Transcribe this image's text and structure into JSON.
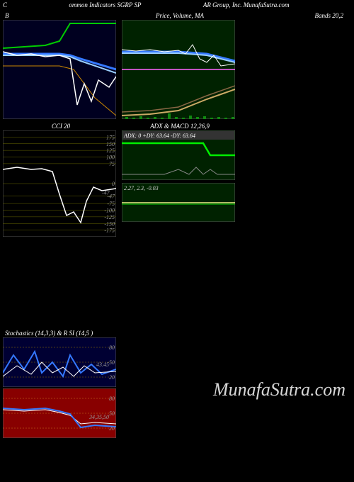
{
  "header": {
    "left": "C",
    "mid1": "ommon Indicators SGRP SP",
    "mid2": "AR Group, Inc. MunafaSutra.com"
  },
  "watermark": "MunafaSutra.com",
  "panels": {
    "b": {
      "title": "B",
      "right_title": "Bands 20,2",
      "w": 160,
      "h": 140,
      "bg": "#000020",
      "lines": [
        {
          "color": "#00cc00",
          "width": 2,
          "pts": [
            [
              0,
              40
            ],
            [
              30,
              38
            ],
            [
              60,
              36
            ],
            [
              80,
              30
            ],
            [
              95,
              5
            ],
            [
              160,
              5
            ]
          ]
        },
        {
          "color": "#3478ff",
          "width": 3,
          "pts": [
            [
              0,
              48
            ],
            [
              40,
              48
            ],
            [
              80,
              48
            ],
            [
              95,
              50
            ],
            [
              110,
              55
            ],
            [
              160,
              70
            ]
          ]
        },
        {
          "color": "#9acfff",
          "width": 2,
          "pts": [
            [
              0,
              50
            ],
            [
              40,
              50
            ],
            [
              80,
              50
            ],
            [
              95,
              52
            ],
            [
              110,
              58
            ],
            [
              160,
              75
            ]
          ]
        },
        {
          "color": "#cc8800",
          "width": 1,
          "pts": [
            [
              0,
              65
            ],
            [
              40,
              65
            ],
            [
              80,
              65
            ],
            [
              100,
              70
            ],
            [
              130,
              110
            ],
            [
              160,
              135
            ]
          ]
        },
        {
          "color": "#ffffff",
          "width": 1.5,
          "pts": [
            [
              0,
              45
            ],
            [
              20,
              50
            ],
            [
              40,
              48
            ],
            [
              60,
              52
            ],
            [
              80,
              50
            ],
            [
              95,
              55
            ],
            [
              105,
              120
            ],
            [
              115,
              90
            ],
            [
              125,
              115
            ],
            [
              135,
              85
            ],
            [
              150,
              95
            ],
            [
              160,
              80
            ]
          ]
        }
      ]
    },
    "price": {
      "title": "Price,  Volume,  MA",
      "w": 160,
      "h": 140,
      "bg": "#002200",
      "lines": [
        {
          "color": "#3478ff",
          "width": 3,
          "pts": [
            [
              0,
              45
            ],
            [
              40,
              45
            ],
            [
              80,
              45
            ],
            [
              120,
              48
            ],
            [
              160,
              58
            ]
          ]
        },
        {
          "color": "#9acfff",
          "width": 2,
          "pts": [
            [
              0,
              47
            ],
            [
              40,
              47
            ],
            [
              80,
              47
            ],
            [
              120,
              50
            ],
            [
              160,
              60
            ]
          ]
        },
        {
          "color": "#ff66ff",
          "width": 1.5,
          "pts": [
            [
              0,
              70
            ],
            [
              160,
              70
            ]
          ]
        },
        {
          "color": "#ffffff",
          "width": 1,
          "pts": [
            [
              0,
              42
            ],
            [
              20,
              44
            ],
            [
              40,
              42
            ],
            [
              60,
              45
            ],
            [
              80,
              43
            ],
            [
              90,
              48
            ],
            [
              100,
              35
            ],
            [
              110,
              55
            ],
            [
              120,
              60
            ],
            [
              130,
              50
            ],
            [
              140,
              65
            ],
            [
              160,
              62
            ]
          ]
        },
        {
          "color": "#ccaa66",
          "width": 2,
          "pts": [
            [
              0,
              135
            ],
            [
              40,
              133
            ],
            [
              80,
              128
            ],
            [
              100,
              120
            ],
            [
              120,
              112
            ],
            [
              140,
              105
            ],
            [
              160,
              98
            ]
          ]
        },
        {
          "color": "#886644",
          "width": 1.5,
          "pts": [
            [
              0,
              130
            ],
            [
              40,
              128
            ],
            [
              80,
              123
            ],
            [
              100,
              115
            ],
            [
              120,
              107
            ],
            [
              140,
              100
            ],
            [
              160,
              93
            ]
          ]
        }
      ],
      "volume_bars": [
        [
          5,
          3
        ],
        [
          15,
          2
        ],
        [
          25,
          4
        ],
        [
          35,
          2
        ],
        [
          45,
          3
        ],
        [
          55,
          2
        ],
        [
          65,
          8
        ],
        [
          75,
          3
        ],
        [
          85,
          2
        ],
        [
          95,
          5
        ],
        [
          105,
          3
        ],
        [
          115,
          4
        ],
        [
          125,
          2
        ],
        [
          135,
          3
        ],
        [
          145,
          2
        ],
        [
          155,
          3
        ]
      ],
      "vol_color": "#118811"
    },
    "cci": {
      "title": "CCI 20",
      "w": 160,
      "h": 150,
      "bg": "#000000",
      "grid_color": "#666600",
      "grid_vals": [
        175,
        150,
        125,
        100,
        75,
        0,
        -47,
        -75,
        -100,
        -125,
        -150,
        -175
      ],
      "value_label": "-47",
      "line": {
        "color": "#ffffff",
        "width": 1.5,
        "pts": [
          [
            0,
            55
          ],
          [
            20,
            52
          ],
          [
            40,
            55
          ],
          [
            55,
            54
          ],
          [
            70,
            58
          ],
          [
            80,
            90
          ],
          [
            90,
            120
          ],
          [
            100,
            115
          ],
          [
            110,
            130
          ],
          [
            118,
            100
          ],
          [
            128,
            80
          ],
          [
            140,
            85
          ],
          [
            160,
            82
          ]
        ]
      }
    },
    "adx": {
      "title": "ADX   & MACD 12,26,9",
      "w": 160,
      "h": 70,
      "bg": "#002200",
      "label": "ADX: 0   +DY: 63.64   -DY: 63.64",
      "lines": [
        {
          "color": "#00ee00",
          "width": 2.5,
          "pts": [
            [
              0,
              18
            ],
            [
              100,
              18
            ],
            [
              115,
              18
            ],
            [
              125,
              35
            ],
            [
              160,
              35
            ]
          ]
        },
        {
          "color": "#888888",
          "width": 1,
          "pts": [
            [
              0,
              62
            ],
            [
              60,
              62
            ],
            [
              80,
              55
            ],
            [
              95,
              62
            ],
            [
              105,
              52
            ],
            [
              115,
              62
            ],
            [
              125,
              55
            ],
            [
              135,
              62
            ],
            [
              160,
              62
            ]
          ]
        }
      ]
    },
    "macd": {
      "w": 160,
      "h": 55,
      "bg": "#002200",
      "label": "2.27,  2.3,  -0.03",
      "lines": [
        {
          "color": "#eeee88",
          "width": 1.5,
          "pts": [
            [
              0,
              28
            ],
            [
              160,
              28
            ]
          ]
        },
        {
          "color": "#00cc00",
          "width": 1,
          "pts": [
            [
              0,
              30
            ],
            [
              160,
              30
            ]
          ]
        }
      ]
    },
    "stoch": {
      "title": "Stochastics                    (14,3,3) & R                   SI                    (14,5                              )",
      "w": 160,
      "h": 70,
      "bg": "#000033",
      "grid": [
        80,
        50,
        20
      ],
      "label": "43.45",
      "grid_color": "#997700",
      "lines": [
        {
          "color": "#3478ff",
          "width": 2,
          "pts": [
            [
              0,
              50
            ],
            [
              15,
              25
            ],
            [
              30,
              45
            ],
            [
              45,
              20
            ],
            [
              55,
              50
            ],
            [
              70,
              35
            ],
            [
              85,
              55
            ],
            [
              95,
              25
            ],
            [
              110,
              50
            ],
            [
              125,
              38
            ],
            [
              140,
              52
            ],
            [
              160,
              45
            ]
          ]
        },
        {
          "color": "#ffffff",
          "width": 1,
          "pts": [
            [
              0,
              55
            ],
            [
              20,
              40
            ],
            [
              40,
              52
            ],
            [
              55,
              35
            ],
            [
              70,
              50
            ],
            [
              85,
              42
            ],
            [
              100,
              55
            ],
            [
              115,
              40
            ],
            [
              130,
              50
            ],
            [
              160,
              48
            ]
          ]
        }
      ]
    },
    "rsi": {
      "w": 160,
      "h": 70,
      "bg": "#880000",
      "grid": [
        80,
        50,
        20
      ],
      "label": "34,35,50",
      "grid_color": "#cc7722",
      "lines": [
        {
          "color": "#ffffff",
          "width": 1,
          "pts": [
            [
              0,
              30
            ],
            [
              30,
              32
            ],
            [
              60,
              30
            ],
            [
              80,
              34
            ],
            [
              95,
              38
            ],
            [
              110,
              50
            ],
            [
              130,
              48
            ],
            [
              160,
              50
            ]
          ]
        },
        {
          "color": "#3478ff",
          "width": 2,
          "pts": [
            [
              0,
              28
            ],
            [
              30,
              30
            ],
            [
              60,
              28
            ],
            [
              80,
              32
            ],
            [
              95,
              36
            ],
            [
              110,
              55
            ],
            [
              130,
              52
            ],
            [
              160,
              54
            ]
          ]
        }
      ]
    }
  }
}
